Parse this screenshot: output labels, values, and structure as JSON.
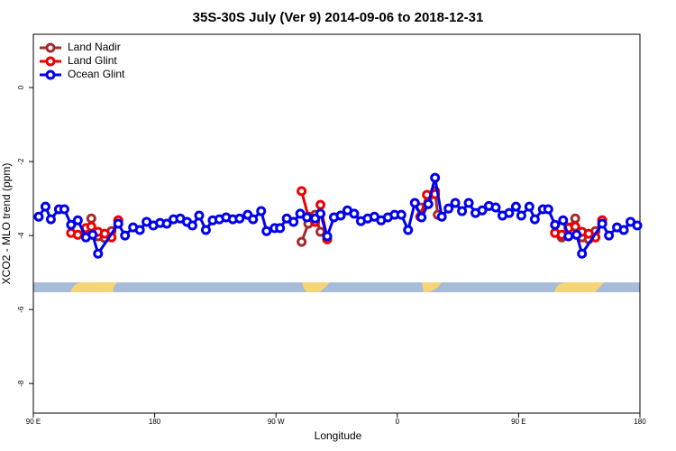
{
  "chart_data": {
    "type": "line",
    "title": "35S-30S July (Ver 9)   2014-09-06 to 2018-12-31",
    "x_label": "Longitude",
    "y_label": "XCO2 - MLO trend (ppm)",
    "xlim": [
      90,
      540
    ],
    "xticks": [
      {
        "value": 90,
        "label": "90 E"
      },
      180,
      {
        "value": 270,
        "label": "90 W"
      },
      {
        "value": 360,
        "label": "0"
      },
      {
        "value": 450,
        "label": "90 E"
      },
      {
        "value": 540,
        "label": "180"
      }
    ],
    "ylim": [
      -8.8,
      1.44
    ],
    "yticks": [
      0,
      -2,
      -4,
      -6,
      -8
    ],
    "legend": "top-left",
    "series": [
      {
        "name": "Land Nadir",
        "color": "#a52a2a",
        "x": [
          128,
          133,
          138,
          143,
          148,
          153,
          null,
          289,
          294,
          299,
          303,
          308,
          null,
          377,
          383,
          388,
          390,
          null,
          482,
          487,
          492,
          497,
          502,
          507,
          512
        ],
        "values": [
          -3.98,
          -3.54,
          -4.02,
          -4.07,
          -3.88,
          -3.59,
          null,
          -4.17,
          -3.68,
          -3.44,
          -3.9,
          -4.1,
          null,
          -3.24,
          -3.15,
          -2.8,
          -3.44,
          null,
          -4.05,
          -3.78,
          -3.54,
          -4.05,
          -4.1,
          -3.88,
          -3.59
        ]
      },
      {
        "name": "Land Glint",
        "color": "#ee0000",
        "x": [
          118,
          123,
          129,
          133,
          138,
          143,
          148,
          153,
          null,
          289,
          294,
          299,
          303,
          308,
          null,
          377,
          382,
          388,
          null,
          477,
          482,
          487,
          492,
          497,
          502,
          507,
          512
        ],
        "values": [
          -3.93,
          -3.98,
          -3.8,
          -3.76,
          -3.9,
          -3.95,
          -4.05,
          -3.59,
          null,
          -2.8,
          -3.49,
          -3.63,
          -3.17,
          -4.1,
          null,
          -3.49,
          -2.9,
          -2.88,
          null,
          -3.93,
          -3.98,
          -3.8,
          -3.76,
          -3.9,
          -3.95,
          -4.05,
          -3.59
        ]
      },
      {
        "name": "Ocean Glint",
        "color": "#0000ee",
        "x": [
          94,
          99,
          103,
          109,
          113,
          118,
          123,
          129,
          134,
          138,
          153,
          158,
          164,
          169,
          174,
          179,
          184,
          189,
          194,
          199,
          204,
          208,
          213,
          218,
          223,
          228,
          233,
          238,
          243,
          249,
          253,
          259,
          263,
          269,
          273,
          278,
          283,
          288,
          293,
          299,
          303,
          308,
          313,
          318,
          323,
          328,
          333,
          338,
          343,
          348,
          353,
          358,
          363,
          368,
          373,
          378,
          383,
          388,
          393,
          398,
          403,
          408,
          413,
          418,
          423,
          428,
          433,
          438,
          443,
          448,
          452,
          458,
          462,
          468,
          472,
          477,
          483,
          487,
          493,
          497,
          512,
          517,
          523,
          528,
          533,
          538
        ],
        "values": [
          -3.49,
          -3.22,
          -3.56,
          -3.29,
          -3.29,
          -3.71,
          -3.59,
          -4.05,
          -3.98,
          -4.49,
          -3.68,
          -4.0,
          -3.78,
          -3.85,
          -3.63,
          -3.73,
          -3.66,
          -3.68,
          -3.56,
          -3.54,
          -3.63,
          -3.73,
          -3.46,
          -3.85,
          -3.59,
          -3.56,
          -3.51,
          -3.56,
          -3.54,
          -3.44,
          -3.56,
          -3.34,
          -3.88,
          -3.8,
          -3.8,
          -3.54,
          -3.63,
          -3.41,
          -3.51,
          -3.54,
          -3.41,
          -4.02,
          -3.51,
          -3.46,
          -3.32,
          -3.41,
          -3.61,
          -3.54,
          -3.49,
          -3.59,
          -3.51,
          -3.44,
          -3.44,
          -3.85,
          -3.12,
          -3.51,
          -3.15,
          -2.44,
          -3.49,
          -3.27,
          -3.12,
          -3.34,
          -3.12,
          -3.39,
          -3.32,
          -3.2,
          -3.24,
          -3.46,
          -3.39,
          -3.22,
          -3.46,
          -3.22,
          -3.56,
          -3.29,
          -3.29,
          -3.71,
          -3.59,
          -4.02,
          -3.98,
          -4.49,
          -3.68,
          -4.0,
          -3.78,
          -3.85,
          -3.63,
          -3.73
        ]
      }
    ]
  }
}
